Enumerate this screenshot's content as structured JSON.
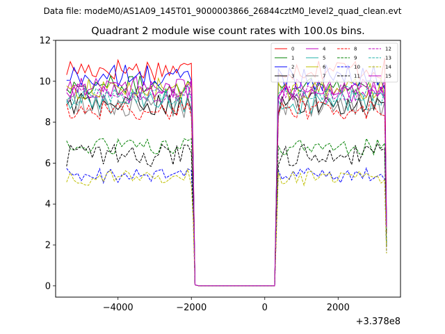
{
  "figure": {
    "suptitle": "Data file: modeM0/AS1A09_145T01_9000003866_26844cztM0_level2_quad_clean.evt"
  },
  "chart_data": {
    "type": "line",
    "title": "Quadrant 2 module wise count rates with 100.0s bins.",
    "xlabel": "",
    "ylabel": "",
    "x_offset_label": "+3.378e8",
    "xlim": [
      -5700,
      3700
    ],
    "ylim": [
      -0.55,
      12.0
    ],
    "xticks": [
      -4000,
      -2000,
      0,
      2000
    ],
    "xtick_labels": [
      "−4000",
      "−2000",
      "0",
      "2000"
    ],
    "yticks": [
      0,
      2,
      4,
      6,
      8,
      10,
      12
    ],
    "ytick_labels": [
      "0",
      "2",
      "4",
      "6",
      "8",
      "10",
      "12"
    ],
    "grid": false,
    "legend_position": "top-right",
    "gap_x": [
      -1900,
      270
    ],
    "segment1": {
      "x_start": -5400,
      "x_end": -2000,
      "bin": 100
    },
    "segment2": {
      "x_start": 370,
      "x_end": 3270,
      "bin": 100
    },
    "series": [
      {
        "name": "0",
        "color": "#ff0000",
        "dash": "solid",
        "mean": 10.6,
        "spread": 0.35
      },
      {
        "name": "1",
        "color": "#008000",
        "dash": "solid",
        "mean": 9.8,
        "spread": 0.3
      },
      {
        "name": "2",
        "color": "#0000ff",
        "dash": "solid",
        "mean": 10.2,
        "spread": 0.4
      },
      {
        "name": "3",
        "color": "#000000",
        "dash": "solid",
        "mean": 8.9,
        "spread": 0.35
      },
      {
        "name": "4",
        "color": "#bf00bf",
        "dash": "solid",
        "mean": 9.5,
        "spread": 0.35
      },
      {
        "name": "5",
        "color": "#20b2aa",
        "dash": "solid",
        "mean": 9.0,
        "spread": 0.4
      },
      {
        "name": "6",
        "color": "#bfbf00",
        "dash": "solid",
        "mean": 9.6,
        "spread": 0.35
      },
      {
        "name": "7",
        "color": "#808080",
        "dash": "solid",
        "mean": 8.8,
        "spread": 0.4
      },
      {
        "name": "8",
        "color": "#ff0000",
        "dash": "dashed",
        "mean": 8.6,
        "spread": 0.3
      },
      {
        "name": "9",
        "color": "#008000",
        "dash": "dashed",
        "mean": 6.8,
        "spread": 0.25
      },
      {
        "name": "10",
        "color": "#0000ff",
        "dash": "dashed",
        "mean": 5.4,
        "spread": 0.25
      },
      {
        "name": "11",
        "color": "#000000",
        "dash": "dashed",
        "mean": 6.4,
        "spread": 0.35
      },
      {
        "name": "12",
        "color": "#bf00bf",
        "dash": "dashed",
        "mean": 9.4,
        "spread": 0.3
      },
      {
        "name": "13",
        "color": "#20b2aa",
        "dash": "dashed",
        "mean": 9.3,
        "spread": 0.3
      },
      {
        "name": "14",
        "color": "#bfbf00",
        "dash": "dashed",
        "mean": 5.3,
        "spread": 0.25
      },
      {
        "name": "15",
        "color": "#bf00bf",
        "dash": "solid",
        "mean": 9.7,
        "spread": 0.35
      }
    ]
  }
}
